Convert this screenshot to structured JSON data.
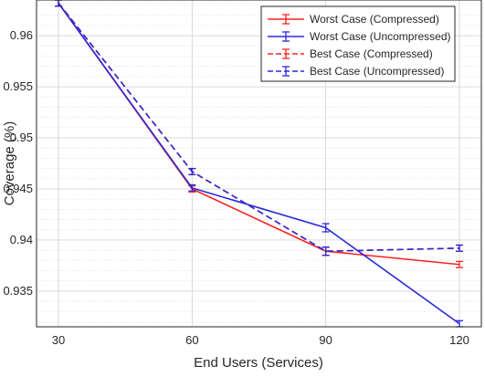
{
  "chart_data": {
    "type": "line",
    "xlabel": "End Users (Services)",
    "ylabel": "Coverage (%)",
    "x": [
      30,
      60,
      90,
      120
    ],
    "xlim": [
      30,
      120
    ],
    "ylim": [
      0.9315,
      0.9635
    ],
    "xticks": [
      "30",
      "60",
      "90",
      "120"
    ],
    "yticks": [
      "0.935",
      "0.94",
      "0.945",
      "0.95",
      "0.955",
      "0.96"
    ],
    "ytick_values": [
      0.935,
      0.94,
      0.945,
      0.95,
      0.955,
      0.96
    ],
    "grid": true,
    "minor_grid": true,
    "legend_position": "top-right",
    "series": [
      {
        "name": "Worst Case (Compressed)",
        "color": "#ff2020",
        "linestyle": "solid",
        "values": [
          0.9632,
          0.945,
          0.9389,
          0.9376
        ],
        "errors": [
          0.0003,
          0.0003,
          0.0004,
          0.0003
        ]
      },
      {
        "name": "Worst Case (Uncompressed)",
        "color": "#2a2ad8",
        "linestyle": "solid",
        "values": [
          0.9632,
          0.9451,
          0.9412,
          0.9318
        ],
        "errors": [
          0.0003,
          0.0003,
          0.0004,
          0.0003
        ]
      },
      {
        "name": "Best Case (Compressed)",
        "color": "#ff2020",
        "linestyle": "dashed",
        "values": [
          0.9632,
          0.9467,
          0.9389,
          0.9392
        ],
        "errors": [
          0.0003,
          0.0003,
          0.0004,
          0.0003
        ]
      },
      {
        "name": "Best Case (Uncompressed)",
        "color": "#2a2ad8",
        "linestyle": "dashed",
        "values": [
          0.9632,
          0.9467,
          0.9389,
          0.9392
        ],
        "errors": [
          0.0003,
          0.0003,
          0.0004,
          0.0003
        ]
      }
    ]
  }
}
